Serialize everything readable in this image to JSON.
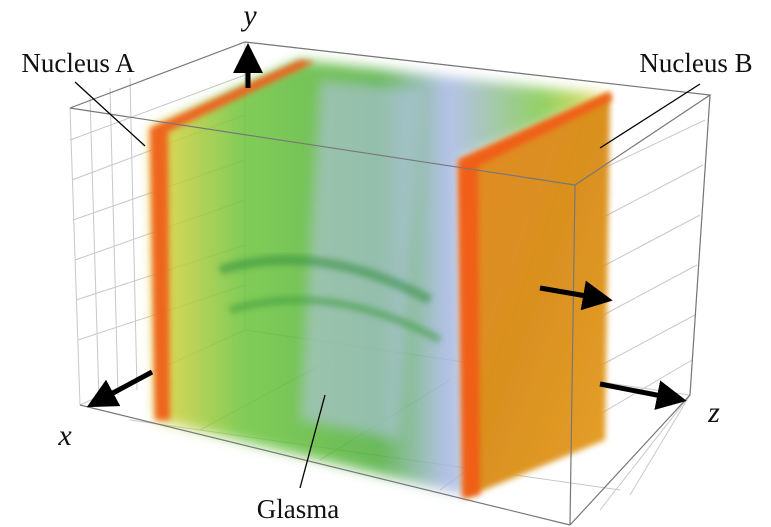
{
  "labels": {
    "nucleus_a": "Nucleus A",
    "nucleus_b": "Nucleus B",
    "glasma": "Glasma"
  },
  "axes": {
    "x": "x",
    "y": "y",
    "z": "z"
  }
}
